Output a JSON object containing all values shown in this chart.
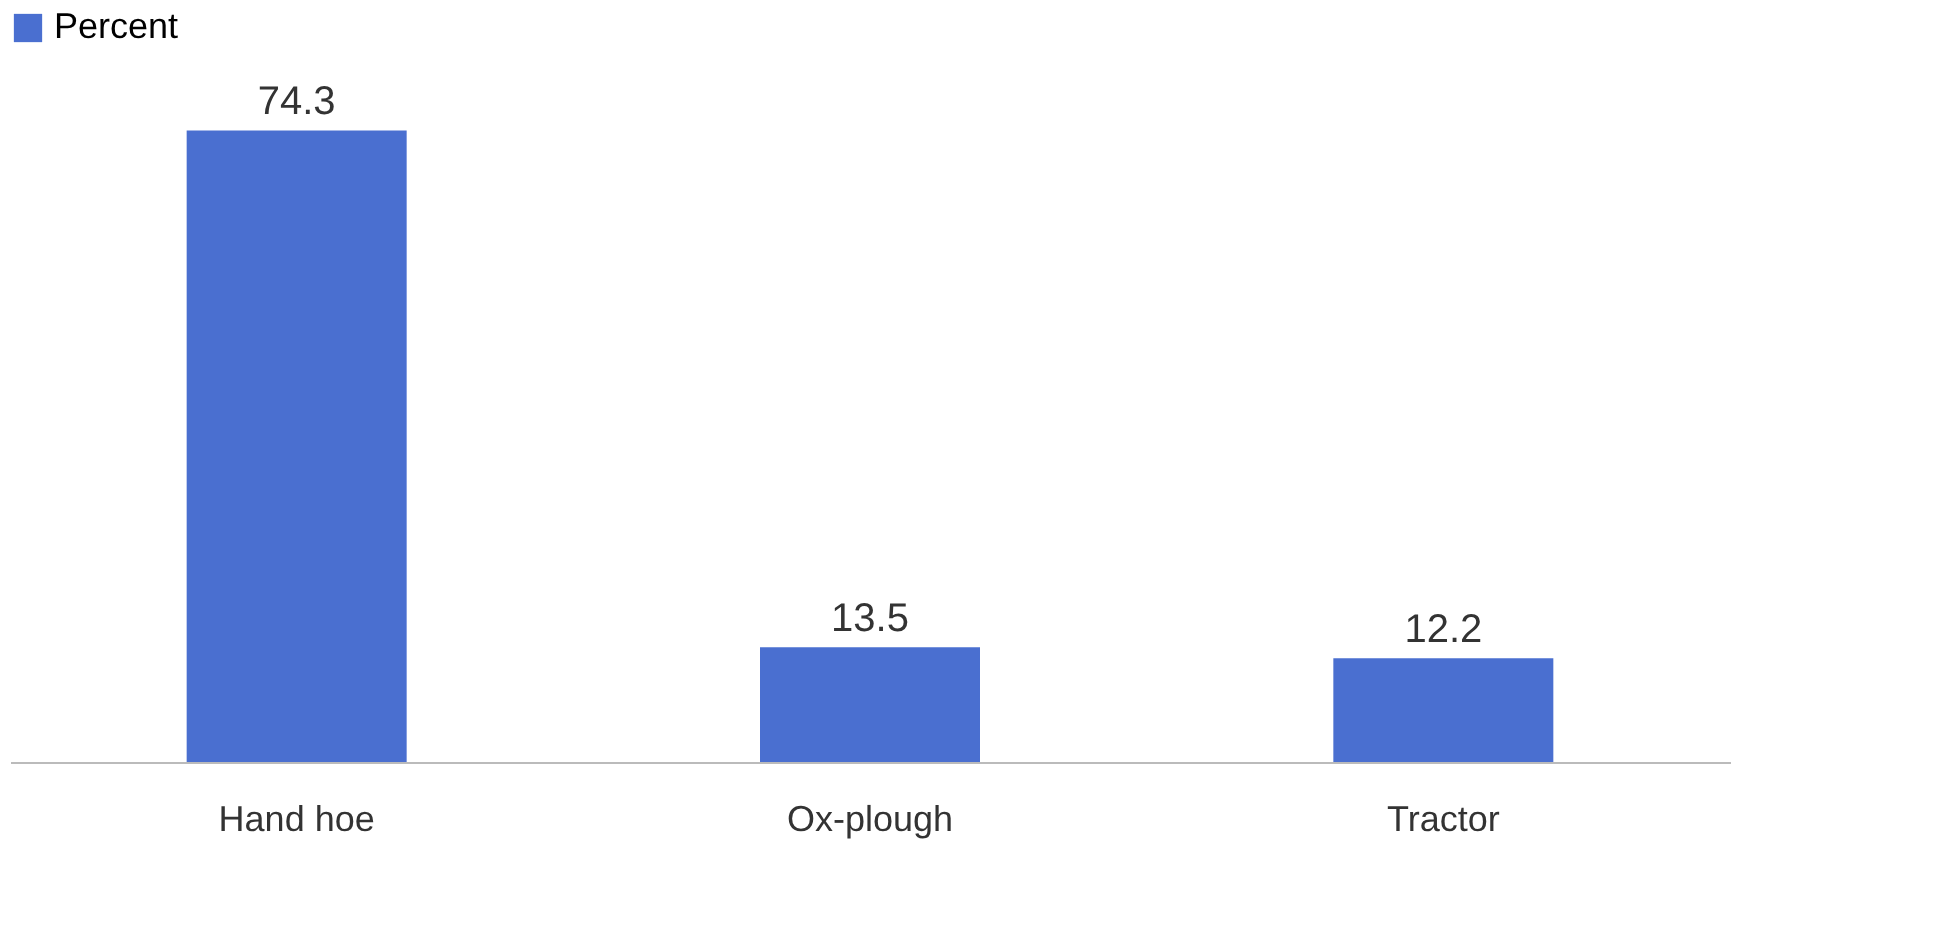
{
  "chart_data": {
    "type": "bar",
    "categories": [
      "Hand hoe",
      "Ox-plough",
      "Tractor"
    ],
    "series": [
      {
        "name": "Percent",
        "color": "#4a6fd0",
        "values": [
          74.3,
          13.5,
          12.2
        ]
      }
    ],
    "data_labels": true,
    "legend": "top",
    "grid": false,
    "tick_labels": "x"
  }
}
